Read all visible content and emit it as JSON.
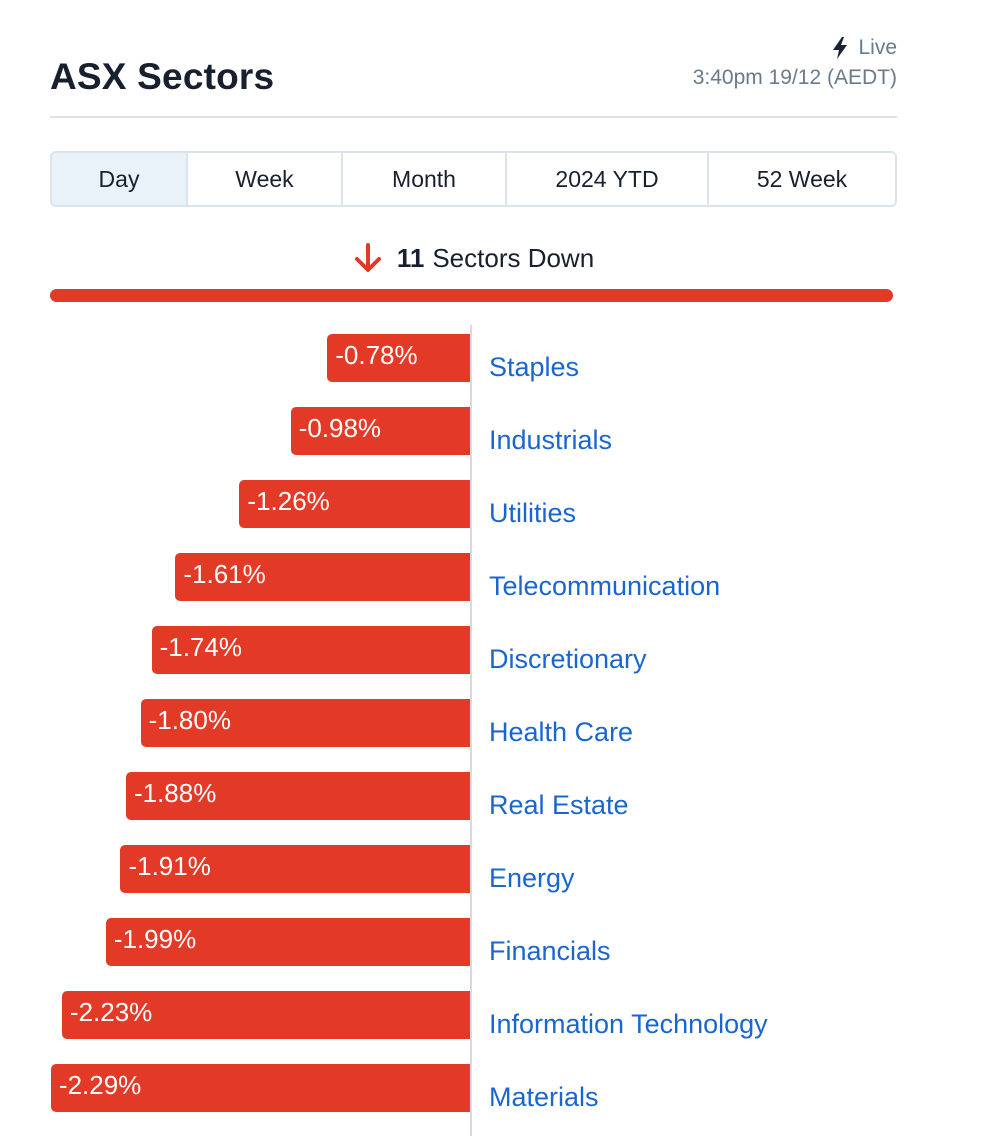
{
  "header": {
    "title": "ASX Sectors",
    "live_label": "Live",
    "timestamp": "3:40pm 19/12 (AEDT)"
  },
  "tabs": [
    {
      "label": "Day",
      "active": true
    },
    {
      "label": "Week",
      "active": false
    },
    {
      "label": "Month",
      "active": false
    },
    {
      "label": "2024 YTD",
      "active": false
    },
    {
      "label": "52 Week",
      "active": false
    }
  ],
  "summary": {
    "count": "11",
    "text": "Sectors Down",
    "direction_icon": "arrow-down-icon"
  },
  "colors": {
    "negative": "#e33a28",
    "link": "#1a66d1",
    "axis": "#d9d9d9"
  },
  "chart_data": {
    "type": "bar",
    "orientation": "horizontal",
    "categories": [
      "Staples",
      "Industrials",
      "Utilities",
      "Telecommunication",
      "Discretionary",
      "Health Care",
      "Real Estate",
      "Energy",
      "Financials",
      "Information Technology",
      "Materials"
    ],
    "values": [
      -0.78,
      -0.98,
      -1.26,
      -1.61,
      -1.74,
      -1.8,
      -1.88,
      -1.91,
      -1.99,
      -2.23,
      -2.29
    ],
    "value_labels": [
      "-0.78%",
      "-0.98%",
      "-1.26%",
      "-1.61%",
      "-1.74%",
      "-1.80%",
      "-1.88%",
      "-1.91%",
      "-1.99%",
      "-2.23%",
      "-2.29%"
    ]
  }
}
